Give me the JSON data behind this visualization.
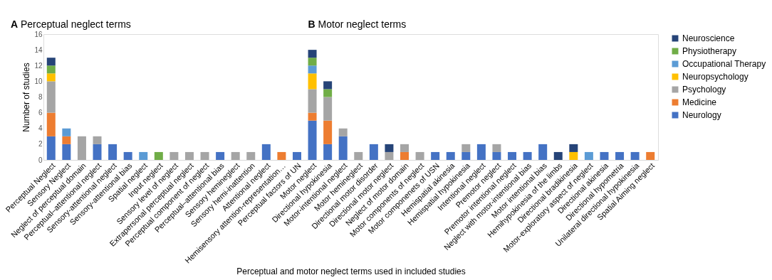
{
  "chart_data": {
    "type": "bar",
    "stacked": true,
    "annotations": [
      "A Perceptual neglect terms",
      "B Motor neglect terms"
    ],
    "xlabel": "Perceptual and motor neglect terms used in included studies",
    "ylabel": "Number of studies",
    "categories": [
      "Perceptual Neglect",
      "Sensory Neglect",
      "Neglect of perceptual domain",
      "Perceptual–attentional neglect",
      "Sensory-attentional neglect",
      "Sensory-attentional bias",
      "Spatial neglect",
      "Input neglect",
      "Sensory level of neglect",
      "Extrapersonal perceptual neglect",
      "Perceptual component of neglect",
      "Perceptual–attentional bias",
      "Sensory hemineglect",
      "Sensory hemi-inattention",
      "Attentional neglect",
      "Hemisensory attention-representation…",
      "Perceptual factors of UN",
      "Motor neglect",
      "Directional hypokinesia",
      "Motor-intentional neglect",
      "Motor hemineglect",
      "Directional motor disorder",
      "Directional motor neglect",
      "Neglect of motor domain",
      "Motor components of neglect",
      "Motor componenets of USN",
      "Hemispatial akinesia",
      "Hemispatial hypokinesia",
      "Intentional neglect",
      "Premotor neglect",
      "Premotor intentional neglect",
      "Neglect with motor-intentional bias",
      "Motor intentional bias",
      "Hemihypokinesia of the limbs",
      "Directional bradikinesia",
      "Motor-exploratory aspect of neglect",
      "Directional akinesia",
      "Directional hypometria",
      "Unilateral directional hypokinesia",
      "Spatial Aiming neglect"
    ],
    "series": [
      {
        "name": "Neurology",
        "color": "#4472c4",
        "values": [
          3,
          2,
          null,
          2,
          2,
          1,
          null,
          null,
          null,
          null,
          null,
          1,
          null,
          null,
          2,
          null,
          1,
          5,
          2,
          3,
          null,
          2,
          null,
          null,
          null,
          1,
          1,
          1,
          2,
          1,
          1,
          1,
          2,
          null,
          null,
          null,
          1,
          1,
          1,
          null
        ]
      },
      {
        "name": "Medicine",
        "color": "#ed7d31",
        "values": [
          3,
          1,
          null,
          null,
          null,
          null,
          null,
          null,
          null,
          null,
          null,
          null,
          null,
          null,
          null,
          1,
          null,
          1,
          3,
          null,
          null,
          null,
          null,
          1,
          null,
          null,
          null,
          null,
          null,
          null,
          null,
          null,
          null,
          null,
          null,
          null,
          null,
          null,
          null,
          1
        ]
      },
      {
        "name": "Psychology",
        "color": "#a5a5a5",
        "values": [
          4,
          null,
          3,
          1,
          null,
          null,
          null,
          null,
          1,
          1,
          1,
          null,
          1,
          1,
          null,
          null,
          null,
          3,
          3,
          1,
          1,
          null,
          1,
          1,
          1,
          null,
          null,
          1,
          null,
          1,
          null,
          null,
          null,
          null,
          null,
          null,
          null,
          null,
          null,
          null
        ]
      },
      {
        "name": "Neuropsychology",
        "color": "#ffc000",
        "values": [
          1,
          null,
          null,
          null,
          null,
          null,
          null,
          null,
          null,
          null,
          null,
          null,
          null,
          null,
          null,
          null,
          null,
          2,
          null,
          null,
          null,
          null,
          null,
          null,
          null,
          null,
          null,
          null,
          null,
          null,
          null,
          null,
          null,
          null,
          1,
          null,
          null,
          null,
          null,
          null
        ]
      },
      {
        "name": "Occupational Therapy",
        "color": "#5b9bd5",
        "values": [
          null,
          1,
          null,
          null,
          null,
          null,
          1,
          null,
          null,
          null,
          null,
          null,
          null,
          null,
          null,
          null,
          null,
          1,
          null,
          null,
          null,
          null,
          null,
          null,
          null,
          null,
          null,
          null,
          null,
          null,
          null,
          null,
          null,
          null,
          null,
          1,
          null,
          null,
          null,
          null
        ]
      },
      {
        "name": "Physiotherapy",
        "color": "#70ad47",
        "values": [
          1,
          null,
          null,
          null,
          null,
          null,
          null,
          1,
          null,
          null,
          null,
          null,
          null,
          null,
          null,
          null,
          null,
          1,
          1,
          null,
          null,
          null,
          null,
          null,
          null,
          null,
          null,
          null,
          null,
          null,
          null,
          null,
          null,
          null,
          null,
          null,
          null,
          null,
          null,
          null
        ]
      },
      {
        "name": "Neuroscience",
        "color": "#264478",
        "values": [
          1,
          null,
          null,
          null,
          null,
          null,
          null,
          null,
          null,
          null,
          null,
          null,
          null,
          null,
          null,
          null,
          null,
          1,
          1,
          null,
          null,
          null,
          1,
          null,
          null,
          null,
          null,
          null,
          null,
          null,
          null,
          null,
          null,
          1,
          1,
          null,
          null,
          null,
          null,
          null
        ]
      }
    ],
    "ylim": [
      0,
      16
    ],
    "yticks": [
      0,
      2,
      4,
      6,
      8,
      10,
      12,
      14,
      16
    ],
    "grid": false,
    "legend": "right"
  }
}
